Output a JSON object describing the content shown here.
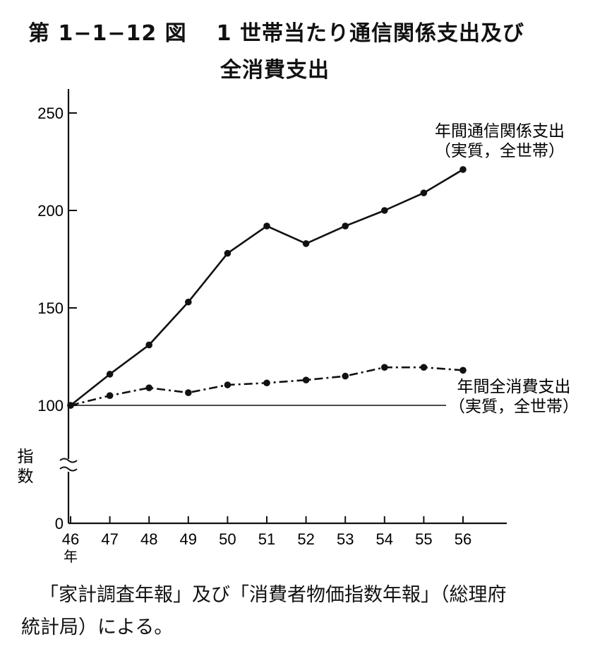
{
  "figure": {
    "number": "第 1−1−12 図",
    "title_line1": "1 世帯当たり通信関係支出及び",
    "title_line2": "全消費支出"
  },
  "source": {
    "line1": "「家計調査年報」及び「消費者物価指数年報」（総理府",
    "line2": "統計局）による。"
  },
  "chart_data": {
    "type": "line",
    "x": [
      "46",
      "47",
      "48",
      "49",
      "50",
      "51",
      "52",
      "53",
      "54",
      "55",
      "56"
    ],
    "x_unit_label": "年",
    "ylabel": "指数",
    "y_ticks": [
      "0",
      "100",
      "150",
      "200",
      "250"
    ],
    "y_axis_break": true,
    "reference_line": 100,
    "series": [
      {
        "name_line1": "年間通信関係支出",
        "name_line2": "（実質，全世帯）",
        "style": "solid",
        "values": [
          100,
          116,
          131,
          153,
          178,
          192,
          183,
          192,
          200,
          209,
          221
        ]
      },
      {
        "name_line1": "年間全消費支出",
        "name_line2": "（実質，全世帯）",
        "style": "dashed",
        "values": [
          100,
          105,
          109,
          106.5,
          110.5,
          111.5,
          113,
          115,
          119.5,
          119.5,
          118
        ]
      }
    ]
  }
}
